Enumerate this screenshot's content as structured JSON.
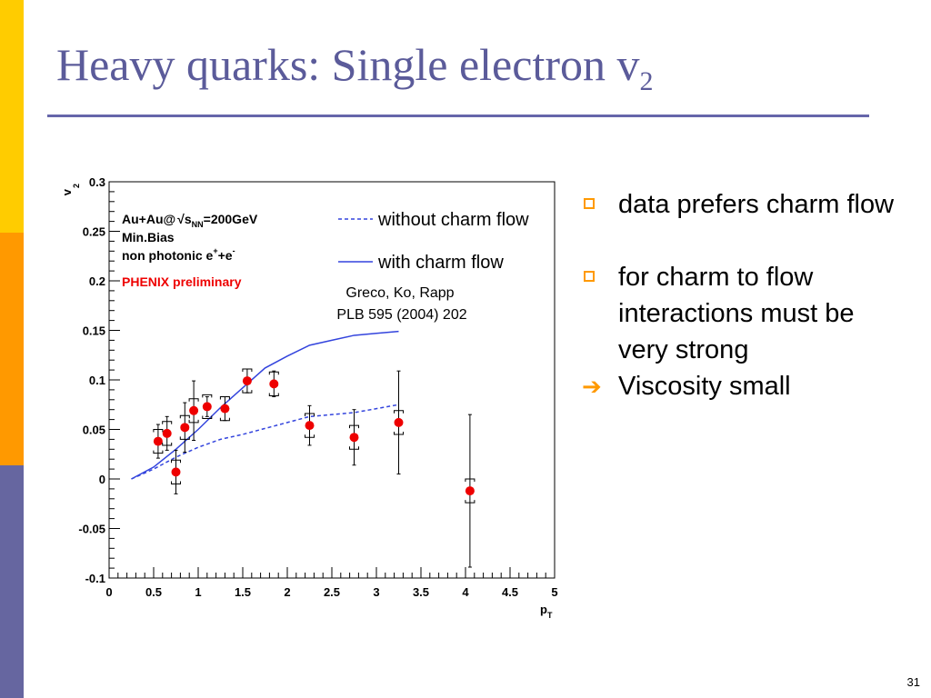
{
  "slide": {
    "title_main": "Heavy quarks: Single electron v",
    "title_sub": "2",
    "page_number": "31",
    "colors": {
      "title": "#5b5b9a",
      "sidebar_top": "#ffcc00",
      "sidebar_mid": "#ff9900",
      "sidebar_bottom": "#6666a0",
      "bullet": "#ff9900"
    }
  },
  "bullets": {
    "items": [
      {
        "text": "data prefers charm flow",
        "icon": "square-bullet-icon"
      },
      {
        "text": "for charm to flow interactions must be very strong",
        "icon": "square-bullet-icon"
      },
      {
        "text": "Viscosity small",
        "icon": "arrow-bullet-icon"
      }
    ]
  },
  "chart_data": {
    "type": "scatter",
    "xlabel": "p",
    "xlabel_sub": "T",
    "ylabel": "v",
    "ylabel_sub": "2",
    "xlim": [
      0,
      5
    ],
    "ylim": [
      -0.1,
      0.3
    ],
    "xticks": [
      "0",
      "0.5",
      "1",
      "1.5",
      "2",
      "2.5",
      "3",
      "3.5",
      "4",
      "4.5",
      "5"
    ],
    "yticks": [
      "-0.1",
      "-0.05",
      "0",
      "0.05",
      "0.1",
      "0.15",
      "0.2",
      "0.25",
      "0.3"
    ],
    "annotations": {
      "collision_prefix": "Au+Au@",
      "collision_sqrt": "s",
      "collision_sub": "NN",
      "collision_suffix": "=200GeV",
      "line2": "Min.Bias",
      "line3_prefix": "non photonic e",
      "line3_sup1": "+",
      "line3_mid": "+e",
      "line3_sup2": "-",
      "preliminary": "PHENIX preliminary",
      "reference_line1": "Greco, Ko, Rapp",
      "reference_line2": "PLB 595 (2004) 202"
    },
    "legend": [
      {
        "label": "without charm flow",
        "style": "dashed"
      },
      {
        "label": "with charm flow",
        "style": "solid"
      }
    ],
    "series": [
      {
        "name": "PHENIX preliminary",
        "color": "#ee0000",
        "points": [
          {
            "x": 0.55,
            "y": 0.038,
            "err": 0.017
          },
          {
            "x": 0.65,
            "y": 0.046,
            "err": 0.017
          },
          {
            "x": 0.75,
            "y": 0.007,
            "err": 0.022
          },
          {
            "x": 0.85,
            "y": 0.052,
            "err": 0.025
          },
          {
            "x": 0.95,
            "y": 0.069,
            "err": 0.03
          },
          {
            "x": 1.1,
            "y": 0.073,
            "err": 0.01
          },
          {
            "x": 1.3,
            "y": 0.071,
            "err": 0.012
          },
          {
            "x": 1.55,
            "y": 0.099,
            "err": 0.012
          },
          {
            "x": 1.85,
            "y": 0.096,
            "err": 0.013
          },
          {
            "x": 2.25,
            "y": 0.054,
            "err": 0.02
          },
          {
            "x": 2.75,
            "y": 0.042,
            "err": 0.028
          },
          {
            "x": 3.25,
            "y": 0.057,
            "err": 0.052
          },
          {
            "x": 4.05,
            "y": -0.012,
            "err": 0.077
          }
        ]
      },
      {
        "name": "without charm flow",
        "color": "#3344dd",
        "style": "dashed",
        "x": [
          0.25,
          0.5,
          0.75,
          1.0,
          1.25,
          1.5,
          1.75,
          2.0,
          2.25,
          2.5,
          2.75,
          3.0,
          3.25
        ],
        "y": [
          0.0,
          0.01,
          0.022,
          0.032,
          0.04,
          0.045,
          0.051,
          0.057,
          0.063,
          0.065,
          0.067,
          0.071,
          0.075
        ]
      },
      {
        "name": "with charm flow",
        "color": "#3344dd",
        "style": "solid",
        "x": [
          0.25,
          0.5,
          0.75,
          1.0,
          1.25,
          1.5,
          1.75,
          2.0,
          2.25,
          2.5,
          2.75,
          3.0,
          3.25
        ],
        "y": [
          0.0,
          0.012,
          0.03,
          0.05,
          0.072,
          0.092,
          0.112,
          0.124,
          0.135,
          0.14,
          0.145,
          0.147,
          0.149
        ]
      }
    ]
  }
}
